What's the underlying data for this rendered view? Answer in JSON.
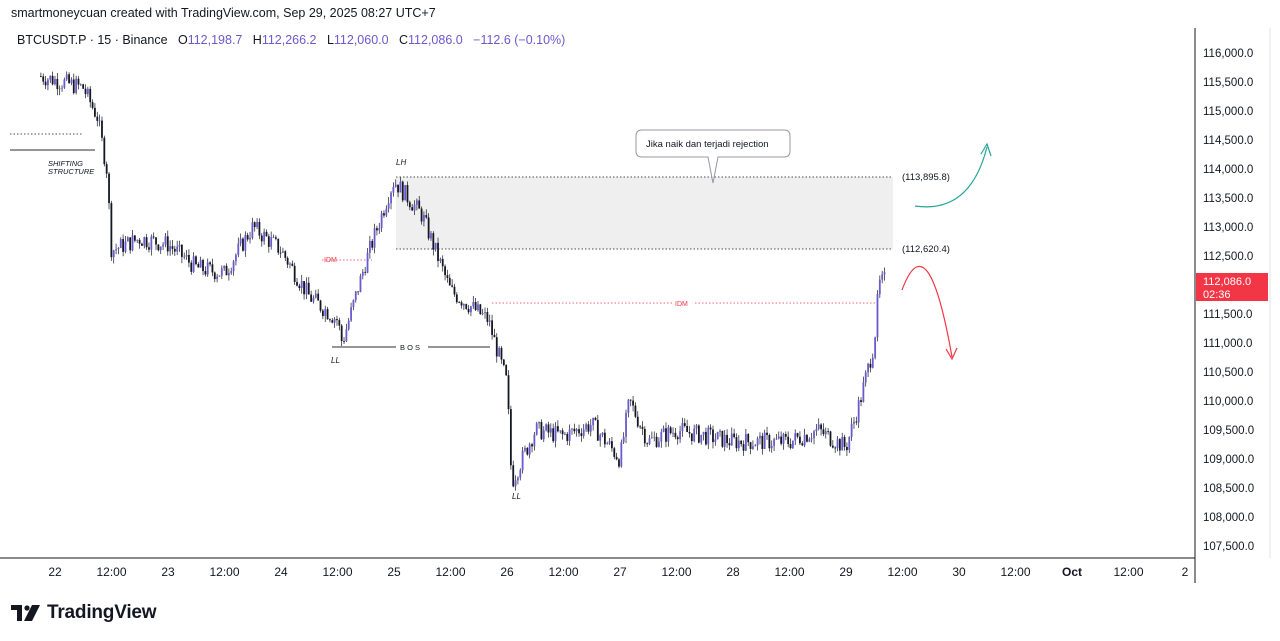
{
  "credit": "smartmoneycuan created with TradingView.com, Sep 29, 2025 08:27 UTC+7",
  "legend": {
    "symbol": "BTCUSDT.P · 15 · Binance",
    "open_label": "O",
    "open": "112,198.7",
    "high_label": "H",
    "high": "112,266.2",
    "low_label": "L",
    "low": "112,060.0",
    "close_label": "C",
    "close": "112,086.0",
    "change": "−112.6 (−0.10%)"
  },
  "price_axis": [
    "116,000.0",
    "115,500.0",
    "115,000.0",
    "114,500.0",
    "114,000.0",
    "113,500.0",
    "113,000.0",
    "112,500.0",
    "112,000.0",
    "111,500.0",
    "111,000.0",
    "110,500.0",
    "110,000.0",
    "109,500.0",
    "109,000.0",
    "108,500.0",
    "108,000.0",
    "107,500.0"
  ],
  "time_axis": [
    "22",
    "12:00",
    "23",
    "12:00",
    "24",
    "12:00",
    "25",
    "12:00",
    "26",
    "12:00",
    "27",
    "12:00",
    "28",
    "12:00",
    "29",
    "12:00",
    "30",
    "12:00",
    "Oct",
    "12:00",
    "2"
  ],
  "current_price": {
    "value": "112,086.0",
    "countdown": "02:36",
    "color": "#f23645"
  },
  "annotations": {
    "shifting_structure_1": "SHIFTING",
    "shifting_structure_2": "STRUCTURE",
    "lh": "LH",
    "ll_1": "LL",
    "ll_2": "LL",
    "bos": "B O S",
    "idm_1": "IDM",
    "idm_2": "IDM",
    "callout": "Jika naik dan terjadi rejection",
    "zone_top": "(113,895.8)",
    "zone_bottom": "(112,620.4)"
  },
  "logo_text": "TradingView",
  "chart_data": {
    "type": "candlestick",
    "symbol": "BTCUSDT.P",
    "interval": "15",
    "exchange": "Binance",
    "ylim": [
      107300,
      116300
    ],
    "y_ticks": [
      107500,
      108000,
      108500,
      109000,
      109500,
      110000,
      110500,
      111000,
      111500,
      112000,
      112500,
      113000,
      113500,
      114000,
      114500,
      115000,
      115500,
      116000
    ],
    "x_ticks": [
      "22",
      "12:00",
      "23",
      "12:00",
      "24",
      "12:00",
      "25",
      "12:00",
      "26",
      "12:00",
      "27",
      "12:00",
      "28",
      "12:00",
      "29",
      "12:00",
      "30",
      "12:00",
      "Oct",
      "12:00",
      "2"
    ],
    "path_approx": [
      [
        "Sep 21 21:00",
        115600
      ],
      [
        "Sep 22 06:00",
        115400
      ],
      [
        "Sep 22 09:00",
        114900
      ],
      [
        "Sep 22 11:00",
        114000
      ],
      [
        "Sep 22 12:00",
        112600
      ],
      [
        "Sep 22 18:00",
        112800
      ],
      [
        "Sep 23 00:00",
        112700
      ],
      [
        "Sep 23 06:00",
        112300
      ],
      [
        "Sep 23 12:00",
        112200
      ],
      [
        "Sep 23 18:00",
        113000
      ],
      [
        "Sep 24 00:00",
        112600
      ],
      [
        "Sep 24 06:00",
        111800
      ],
      [
        "Sep 24 12:00",
        111400
      ],
      [
        "Sep 24 13:00",
        111000
      ],
      [
        "Sep 24 18:00",
        112400
      ],
      [
        "Sep 24 23:00",
        113600
      ],
      [
        "Sep 25 00:00",
        113800
      ],
      [
        "Sep 25 06:00",
        113200
      ],
      [
        "Sep 25 12:00",
        111900
      ],
      [
        "Sep 25 20:00",
        111400
      ],
      [
        "Sep 26 00:00",
        110300
      ],
      [
        "Sep 26 01:00",
        108600
      ],
      [
        "Sep 26 06:00",
        109500
      ],
      [
        "Sep 26 12:00",
        109400
      ],
      [
        "Sep 26 18:00",
        109600
      ],
      [
        "Sep 27 00:00",
        109000
      ],
      [
        "Sep 27 02:00",
        110000
      ],
      [
        "Sep 27 06:00",
        109300
      ],
      [
        "Sep 27 12:00",
        109500
      ],
      [
        "Sep 28 00:00",
        109300
      ],
      [
        "Sep 28 12:00",
        109300
      ],
      [
        "Sep 28 18:00",
        109500
      ],
      [
        "Sep 29 00:00",
        109200
      ],
      [
        "Sep 29 03:00",
        110000
      ],
      [
        "Sep 29 06:00",
        111000
      ],
      [
        "Sep 29 07:00",
        112000
      ],
      [
        "Sep 29 08:15",
        112086
      ]
    ],
    "last": {
      "open": 112198.7,
      "high": 112266.2,
      "low": 112060.0,
      "close": 112086.0,
      "change": -112.6,
      "change_pct": -0.1
    },
    "levels": {
      "zone_top": 113895.8,
      "zone_bottom": 112620.4,
      "idm": 111700,
      "bos": 110950,
      "shifting_structure": 114350
    },
    "colors": {
      "candle": "#6a5acd",
      "wick": "#131722",
      "zone": "#efefef",
      "up_arrow": "#26a69a",
      "down_arrow": "#f23645"
    }
  }
}
